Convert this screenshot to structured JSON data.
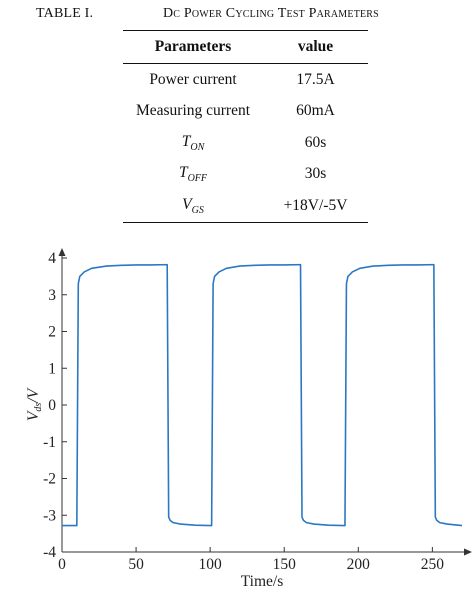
{
  "table": {
    "caption_label": "TABLE I.",
    "caption_title": "Dc Power Cycling Test Parameters",
    "headers": [
      "Parameters",
      "value"
    ],
    "rows": [
      {
        "param": "Power current",
        "value": "17.5A"
      },
      {
        "param": "Measuring current",
        "value": "60mA"
      },
      {
        "param_symbol": "T",
        "param_sub": "ON",
        "value": "60s"
      },
      {
        "param_symbol": "T",
        "param_sub": "OFF",
        "value": "30s"
      },
      {
        "param_symbol": "V",
        "param_sub": "GS",
        "value": "+18V/-5V"
      }
    ]
  },
  "chart_data": {
    "type": "line",
    "title": "",
    "xlabel": "Time/s",
    "ylabel_symbol": "V",
    "ylabel_sub": "ds",
    "ylabel_suffix": "/V",
    "xlim": [
      0,
      270
    ],
    "ylim": [
      -4,
      4
    ],
    "xticks": [
      0,
      50,
      100,
      150,
      200,
      250
    ],
    "yticks": [
      -4,
      -3,
      -2,
      -1,
      0,
      1,
      2,
      3,
      4
    ],
    "grid": false,
    "line_color": "#2a78c4",
    "series": [
      {
        "x": [
          0,
          5,
          10,
          11,
          12,
          15,
          20,
          30,
          40,
          50,
          60,
          71,
          72,
          73,
          75,
          80,
          90,
          100,
          101,
          102,
          103,
          106,
          111,
          120,
          130,
          140,
          150,
          161,
          162,
          163,
          165,
          170,
          180,
          190,
          191,
          192,
          193,
          196,
          201,
          210,
          220,
          230,
          240,
          251,
          252,
          253,
          255,
          260,
          270
        ],
        "y": [
          -3.28,
          -3.28,
          -3.28,
          3.3,
          3.5,
          3.62,
          3.72,
          3.78,
          3.8,
          3.81,
          3.81,
          3.82,
          -3.05,
          -3.14,
          -3.2,
          -3.24,
          -3.27,
          -3.28,
          -3.28,
          3.3,
          3.5,
          3.62,
          3.72,
          3.78,
          3.8,
          3.81,
          3.81,
          3.82,
          -3.05,
          -3.14,
          -3.2,
          -3.24,
          -3.27,
          -3.28,
          -3.28,
          3.3,
          3.5,
          3.62,
          3.72,
          3.78,
          3.8,
          3.81,
          3.81,
          3.82,
          -3.05,
          -3.14,
          -3.2,
          -3.24,
          -3.28
        ]
      }
    ]
  }
}
